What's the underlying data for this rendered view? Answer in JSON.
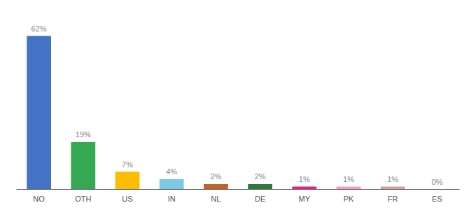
{
  "chart_data": {
    "type": "bar",
    "categories": [
      "NO",
      "OTH",
      "US",
      "IN",
      "NL",
      "DE",
      "MY",
      "PK",
      "FR",
      "ES"
    ],
    "values": [
      62,
      19,
      7,
      4,
      2,
      2,
      1,
      1,
      1,
      0
    ],
    "value_labels": [
      "62%",
      "19%",
      "7%",
      "4%",
      "2%",
      "2%",
      "1%",
      "1%",
      "1%",
      "0%"
    ],
    "colors": [
      "#4472c4",
      "#34a853",
      "#fbbc04",
      "#7ec8e3",
      "#c1612b",
      "#2d7a3a",
      "#e91e8c",
      "#f4a0b0",
      "#d9a090",
      "#cccccc"
    ],
    "ylim": [
      0,
      68
    ],
    "data_labels": true,
    "tick_labels": "x",
    "grid": false
  }
}
